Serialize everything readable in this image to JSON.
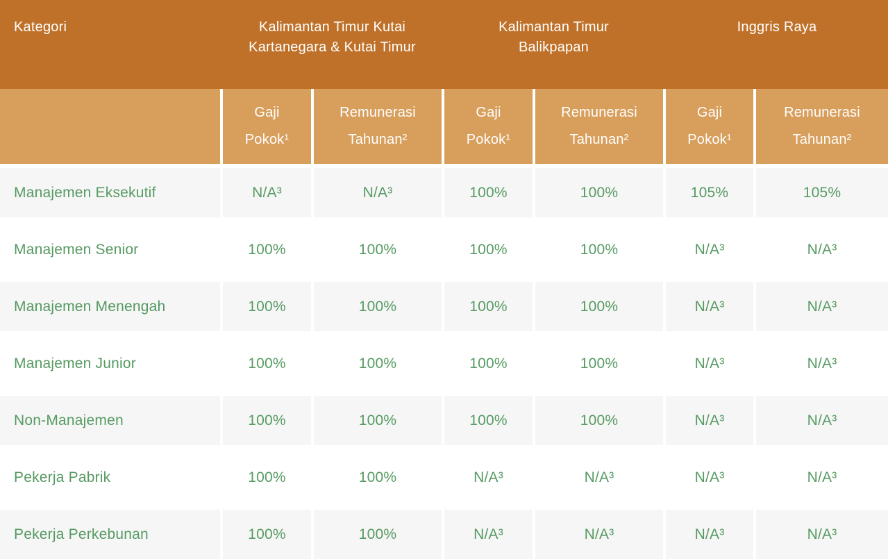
{
  "chart_data": {
    "type": "table",
    "header": {
      "category_label": "Kategori",
      "groups": [
        {
          "lines": [
            "Kalimantan Timur Kutai",
            "Kartanegara & Kutai Timur"
          ]
        },
        {
          "lines": [
            "Kalimantan Timur",
            "Balikpapan"
          ]
        },
        {
          "lines": [
            "Inggris Raya"
          ]
        }
      ],
      "subheaders": [
        {
          "line1": "Gaji",
          "line2": "Pokok¹"
        },
        {
          "line1": "Remunerasi",
          "line2": "Tahunan²"
        },
        {
          "line1": "Gaji",
          "line2": "Pokok¹"
        },
        {
          "line1": "Remunerasi",
          "line2": "Tahunan²"
        },
        {
          "line1": "Gaji",
          "line2": "Pokok¹"
        },
        {
          "line1": "Remunerasi",
          "line2": "Tahunan²"
        }
      ]
    },
    "rows": [
      {
        "label": "Manajemen Eksekutif",
        "values": [
          "N/A³",
          "N/A³",
          "100%",
          "100%",
          "105%",
          "105%"
        ]
      },
      {
        "label": "Manajemen Senior",
        "values": [
          "100%",
          "100%",
          "100%",
          "100%",
          "N/A³",
          "N/A³"
        ]
      },
      {
        "label": "Manajemen Menengah",
        "values": [
          "100%",
          "100%",
          "100%",
          "100%",
          "N/A³",
          "N/A³"
        ]
      },
      {
        "label": "Manajemen Junior",
        "values": [
          "100%",
          "100%",
          "100%",
          "100%",
          "N/A³",
          "N/A³"
        ]
      },
      {
        "label": "Non-Manajemen",
        "values": [
          "100%",
          "100%",
          "100%",
          "100%",
          "N/A³",
          "N/A³"
        ]
      },
      {
        "label": "Pekerja Pabrik",
        "values": [
          "100%",
          "100%",
          "N/A³",
          "N/A³",
          "N/A³",
          "N/A³"
        ]
      },
      {
        "label": "Pekerja Perkebunan",
        "values": [
          "100%",
          "100%",
          "N/A³",
          "N/A³",
          "N/A³",
          "N/A³"
        ]
      }
    ],
    "colors": {
      "header_primary": "#BF7129",
      "header_secondary": "#D89E5B",
      "row_alt_background": "#F6F6F6",
      "header_text": "#FFFFFF",
      "data_text": "#569A62"
    }
  }
}
